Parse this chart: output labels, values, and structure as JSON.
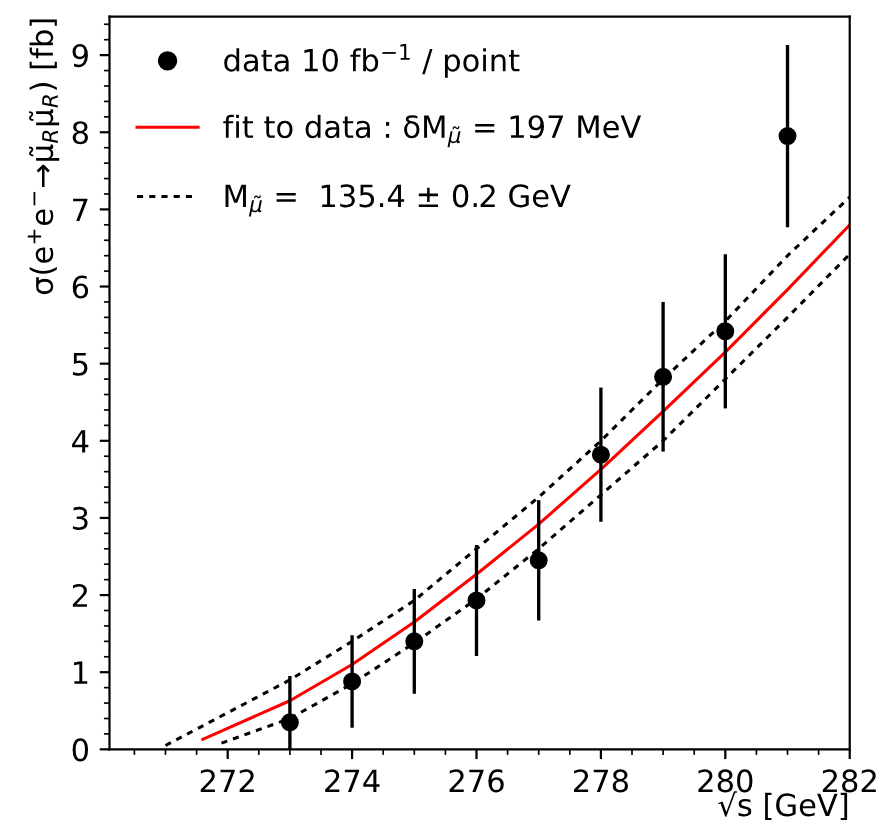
{
  "chart_data": {
    "type": "scatter",
    "xlabel": "√s [GeV]",
    "ylabel": "σ(e$^{+}$e$^{−}$→μ̃$_{R}$μ̃$_{R}$) [fb]",
    "xlim": [
      270.1,
      282
    ],
    "xticks": [
      272,
      274,
      276,
      278,
      280,
      282
    ],
    "ylim": [
      0,
      9.5
    ],
    "yticks": [
      0,
      1,
      2,
      3,
      4,
      5,
      6,
      7,
      8,
      9
    ],
    "grid": false,
    "legend": "top left",
    "series": [
      {
        "name": "data 10 fb$^{−1}$ / point",
        "marker": "circle",
        "color": "#000000",
        "x": [
          273,
          274,
          275,
          276,
          277,
          278,
          279,
          280,
          281
        ],
        "values": [
          0.35,
          0.88,
          1.4,
          1.93,
          2.45,
          3.82,
          4.83,
          5.42,
          7.95
        ],
        "errors": [
          0.6,
          0.6,
          0.68,
          0.72,
          0.78,
          0.87,
          0.97,
          1.0,
          1.18
        ]
      },
      {
        "name": "fit to data : δM$_{μ̃}$ = 197 MeV",
        "type": "line",
        "line_style": "solid",
        "color": "#ff0000",
        "x": [
          271.6,
          273,
          274,
          275,
          276,
          277,
          278,
          279,
          280,
          281,
          282
        ],
        "values": [
          0.13,
          0.63,
          1.1,
          1.65,
          2.27,
          2.92,
          3.63,
          4.38,
          5.15,
          5.96,
          6.8
        ]
      },
      {
        "name": "M$_{μ̃}$ =  135.4 ± 0.2 GeV",
        "type": "line",
        "line_style": "dotted",
        "color": "#000000",
        "x": [
          271.0,
          273,
          274,
          275,
          276,
          277,
          278,
          279,
          280,
          281,
          282
        ],
        "values": [
          0.05,
          0.9,
          1.4,
          1.93,
          2.6,
          3.27,
          4.0,
          4.8,
          5.55,
          6.4,
          7.16
        ]
      },
      {
        "type": "line",
        "line_style": "dotted",
        "color": "#000000",
        "x": [
          271.9,
          273,
          274,
          275,
          276,
          277,
          278,
          279,
          280,
          281,
          282
        ],
        "values": [
          0.08,
          0.4,
          0.85,
          1.38,
          1.95,
          2.6,
          3.3,
          4.0,
          4.8,
          5.6,
          6.42
        ]
      }
    ]
  }
}
